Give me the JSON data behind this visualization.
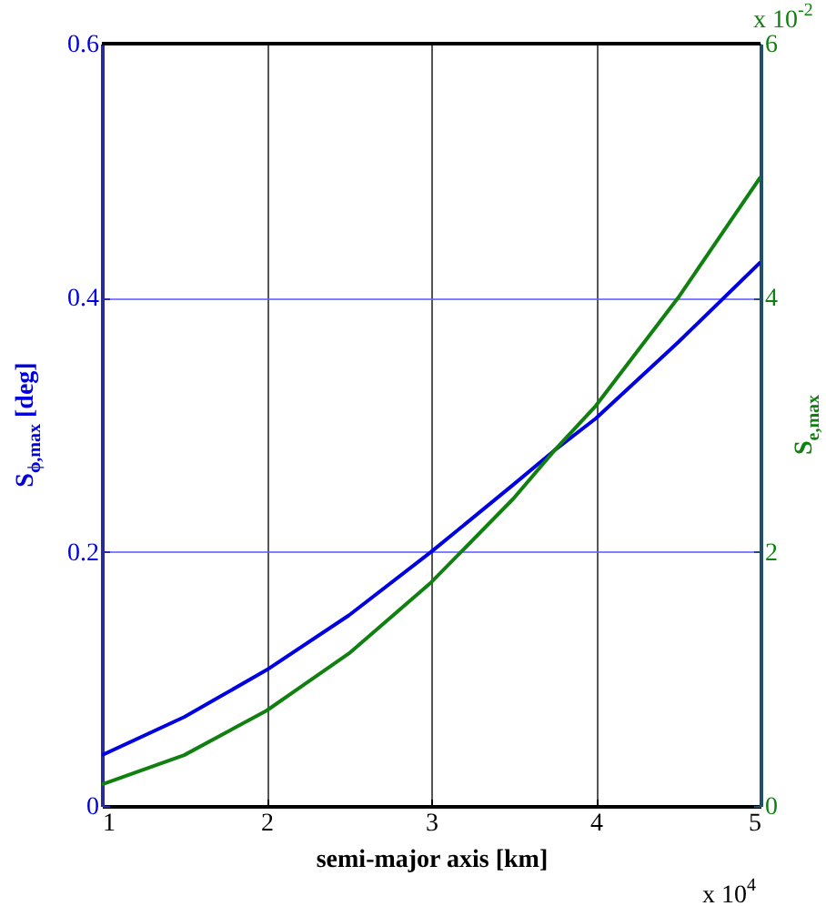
{
  "chart_data": {
    "type": "line",
    "xlabel": "semi-major axis [km]",
    "ylabel": "S$_{ϕ,max}$ [deg]",
    "y2label": "S$_{e,max}$",
    "x": [
      1,
      1.5,
      2,
      2.5,
      3,
      3.5,
      3.75,
      4,
      4.5,
      5
    ],
    "series": [
      {
        "color": "#0000e0",
        "values": [
          0.04,
          0.07,
          0.107,
          0.15,
          0.2,
          0.253,
          0.28,
          0.305,
          0.365,
          0.428
        ]
      },
      {
        "color": "#108010",
        "axis": "y2",
        "values": [
          0.17,
          0.4,
          0.75,
          1.2,
          1.76,
          2.42,
          2.8,
          3.15,
          4.0,
          4.95
        ]
      }
    ],
    "xlim": [
      1,
      5
    ],
    "xticks": [
      1,
      2,
      3,
      4,
      5
    ],
    "ylim": [
      0,
      0.6
    ],
    "yticks": [
      0,
      0.2,
      0.4,
      0.6
    ],
    "y2lim": [
      0,
      6
    ],
    "y2ticks": [
      0,
      2,
      4,
      6
    ],
    "grid": true,
    "annotations": [
      "x 10$^{4}$",
      "x 10$^{-2}$"
    ]
  }
}
